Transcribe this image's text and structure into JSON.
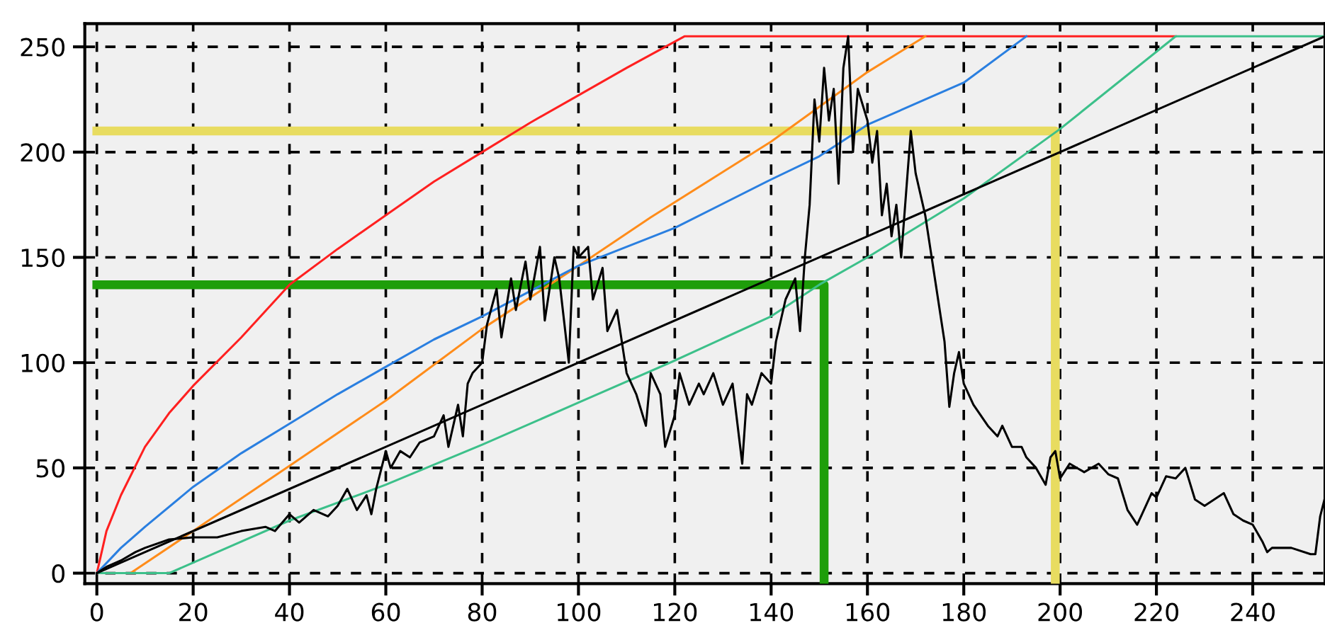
{
  "chart_data": {
    "type": "line",
    "xlim": [
      -2.5,
      255
    ],
    "ylim": [
      -5,
      261
    ],
    "xticks": [
      0,
      20,
      40,
      60,
      80,
      100,
      120,
      140,
      160,
      180,
      200,
      220,
      240
    ],
    "yticks": [
      0,
      50,
      100,
      150,
      200,
      250
    ],
    "grid": true,
    "line_style": "solid",
    "series": [
      {
        "color": "#ff2020",
        "x": [
          0,
          1,
          2,
          5,
          10,
          15,
          20,
          30,
          40,
          50,
          60,
          70,
          80,
          90,
          100,
          110,
          122,
          224
        ],
        "values": [
          0,
          10,
          20,
          37,
          60,
          76,
          89,
          112,
          137,
          154,
          170,
          186,
          200,
          214,
          227,
          240,
          255,
          255
        ]
      },
      {
        "color": "#ff8c1a",
        "x": [
          0,
          7,
          20,
          40,
          60,
          80,
          100,
          115,
          140,
          160,
          172
        ],
        "values": [
          0,
          0,
          20,
          51,
          82,
          116,
          146,
          169,
          205,
          238,
          255
        ]
      },
      {
        "color": "#2a7fe0",
        "x": [
          0,
          5,
          10,
          20,
          30,
          40,
          50,
          60,
          70,
          80,
          90,
          100,
          120,
          140,
          150,
          160,
          170,
          180,
          193
        ],
        "values": [
          0,
          12,
          22,
          41,
          57,
          71,
          85,
          98,
          111,
          122,
          134,
          146,
          164,
          187,
          198,
          213,
          223,
          233,
          255
        ]
      },
      {
        "color": "#3cc08a",
        "x": [
          0,
          15,
          40,
          60,
          80,
          100,
          120,
          140,
          150,
          160,
          180,
          200,
          224,
          255
        ],
        "values": [
          0,
          0,
          25,
          42,
          61,
          81,
          101,
          122,
          137,
          150,
          178,
          211,
          255,
          255
        ]
      },
      {
        "color": "#000000",
        "x": [
          0,
          255
        ],
        "values": [
          0,
          255
        ]
      },
      {
        "color": "#000000",
        "x": [
          0,
          2,
          5,
          8,
          10,
          15,
          20,
          25,
          30,
          35,
          37,
          40,
          42,
          45,
          48,
          50,
          52,
          54,
          56,
          57,
          58,
          60,
          61,
          63,
          65,
          67,
          70,
          72,
          73,
          75,
          76,
          77,
          78,
          80,
          81,
          83,
          84,
          86,
          87,
          89,
          90,
          92,
          93,
          95,
          96,
          98,
          99,
          100,
          102,
          103,
          105,
          106,
          108,
          110,
          112,
          114,
          115,
          117,
          118,
          120,
          121,
          123,
          125,
          126,
          128,
          130,
          132,
          134,
          135,
          136,
          138,
          140,
          141,
          143,
          145,
          146,
          147,
          148,
          149,
          150,
          151,
          152,
          153,
          154,
          155,
          156,
          157,
          158,
          160,
          161,
          162,
          163,
          164,
          165,
          166,
          167,
          168,
          169,
          170,
          172,
          174,
          176,
          177,
          178,
          179,
          180,
          182,
          185,
          187,
          188,
          190,
          192,
          193,
          195,
          197,
          198,
          199,
          200,
          202,
          205,
          208,
          210,
          212,
          214,
          216,
          217,
          219,
          220,
          222,
          224,
          226,
          228,
          230,
          232,
          234,
          236,
          238,
          240,
          242,
          243,
          244,
          248,
          252,
          253,
          254,
          255
        ],
        "values": [
          0,
          3,
          6,
          10,
          12,
          16,
          17,
          17,
          20,
          22,
          20,
          28,
          24,
          30,
          27,
          32,
          40,
          30,
          37,
          28,
          40,
          58,
          50,
          58,
          55,
          62,
          65,
          75,
          60,
          80,
          65,
          90,
          95,
          100,
          118,
          135,
          112,
          140,
          125,
          148,
          130,
          155,
          120,
          150,
          140,
          100,
          155,
          150,
          155,
          130,
          145,
          115,
          125,
          95,
          85,
          70,
          95,
          85,
          60,
          75,
          95,
          80,
          90,
          85,
          95,
          80,
          90,
          52,
          85,
          80,
          95,
          90,
          110,
          130,
          140,
          115,
          150,
          175,
          225,
          205,
          240,
          215,
          230,
          185,
          240,
          255,
          200,
          230,
          215,
          195,
          210,
          170,
          185,
          160,
          175,
          150,
          180,
          210,
          190,
          170,
          140,
          110,
          79,
          95,
          105,
          90,
          80,
          70,
          65,
          70,
          60,
          60,
          55,
          50,
          42,
          55,
          58,
          45,
          52,
          48,
          52,
          47,
          45,
          30,
          23,
          28,
          38,
          36,
          46,
          45,
          50,
          35,
          32,
          35,
          38,
          28,
          25,
          23,
          15,
          10,
          12,
          12,
          9,
          9,
          27,
          36
        ]
      },
      {
        "color": "#e8dc60",
        "x": [
          0,
          199,
          199
        ],
        "values": [
          210,
          210,
          -5
        ]
      },
      {
        "color": "#1e9e0a",
        "x": [
          0,
          151,
          151
        ],
        "values": [
          137,
          137,
          -5
        ]
      }
    ]
  }
}
